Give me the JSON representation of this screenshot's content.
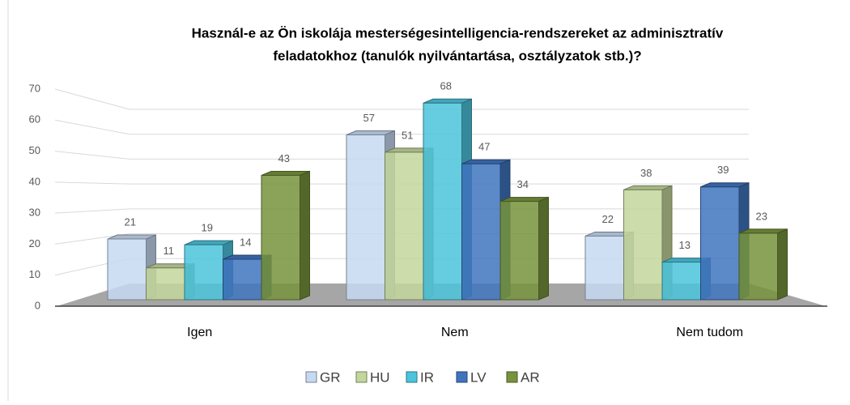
{
  "chart_data": {
    "type": "bar3d",
    "title": [
      "Használ-e az Ön iskolája mesterségesintelligencia-rendszereket az adminisztratív",
      "feladatokhoz (tanulók nyilvántartása, osztályzatok stb.)?"
    ],
    "categories": [
      "Igen",
      "Nem",
      "Nem tudom"
    ],
    "series": [
      {
        "name": "GR",
        "color": "#c6d9f1",
        "values": [
          21,
          57,
          22
        ]
      },
      {
        "name": "HU",
        "color": "#c3d69b",
        "values": [
          11,
          51,
          38
        ]
      },
      {
        "name": "IR",
        "color": "#4bc4dc",
        "values": [
          19,
          68,
          13
        ]
      },
      {
        "name": "LV",
        "color": "#3f74be",
        "values": [
          14,
          47,
          39
        ]
      },
      {
        "name": "AR",
        "color": "#77933c",
        "values": [
          43,
          34,
          23
        ]
      }
    ],
    "ylim": [
      0,
      70
    ],
    "yticks": [
      0,
      10,
      20,
      30,
      40,
      50,
      60,
      70
    ],
    "grid": true,
    "legend": "bottom"
  }
}
